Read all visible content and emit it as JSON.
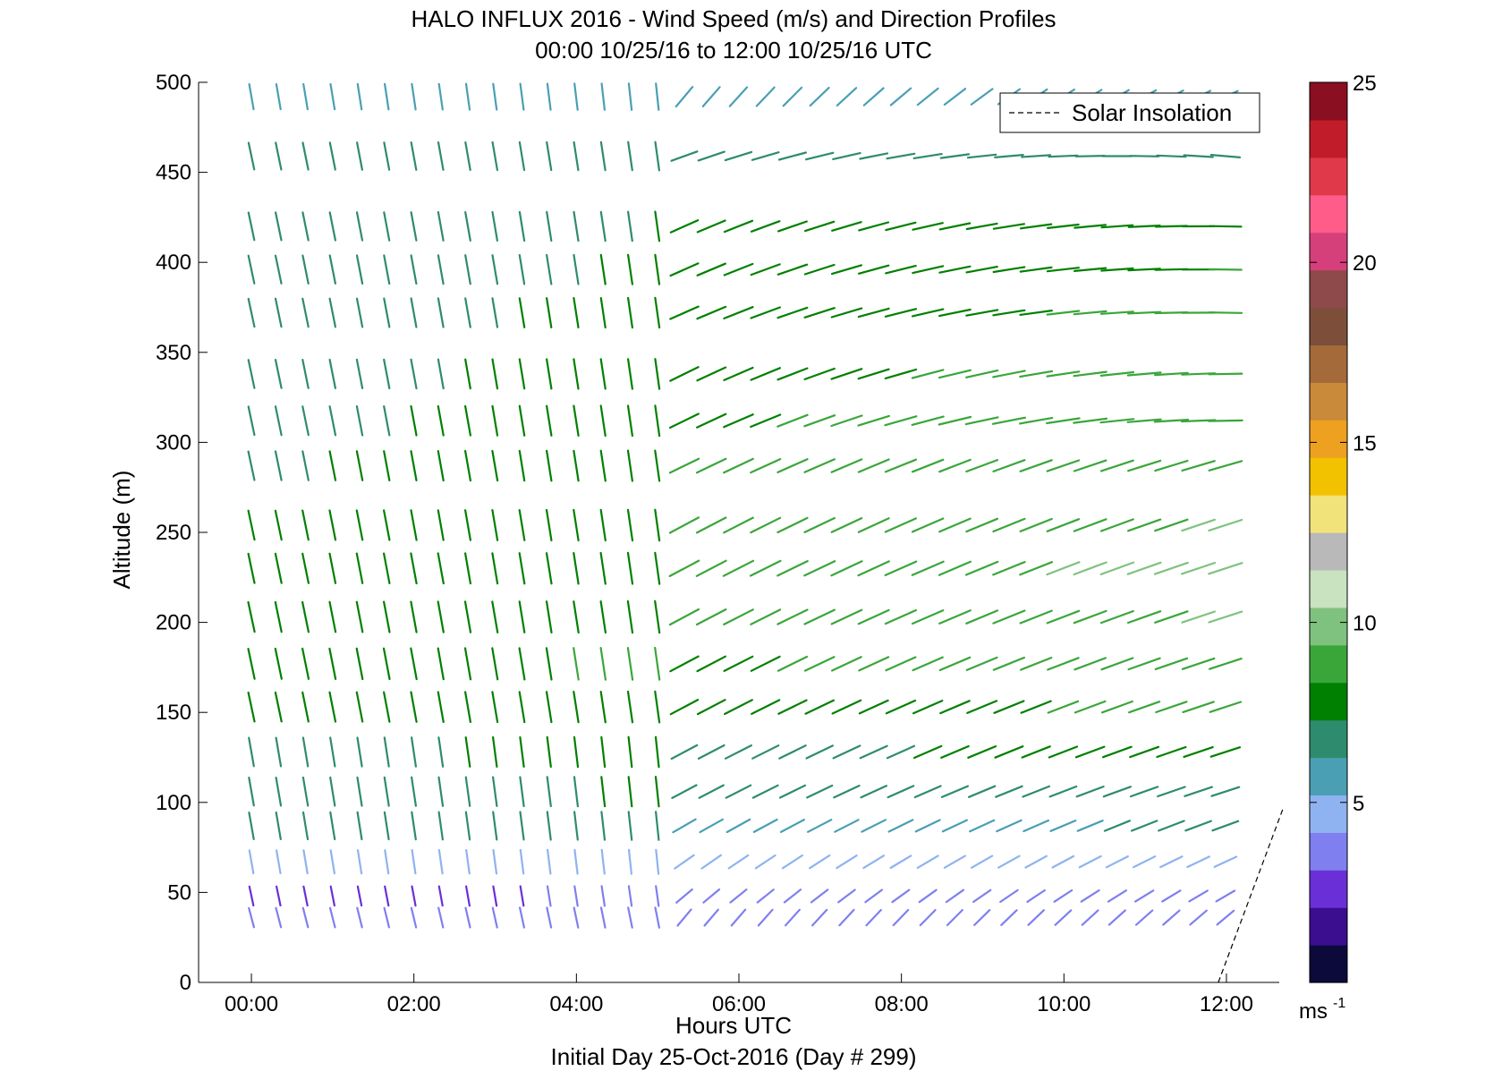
{
  "chart_data": {
    "type": "wind-barb-profile",
    "title": "HALO INFLUX 2016 - Wind Speed (m/s) and Direction Profiles",
    "subtitle": "00:00 10/25/16 to 12:00 10/25/16  UTC",
    "xlabel": "Hours UTC",
    "xlabel2": "Initial Day 25-Oct-2016 (Day # 299)",
    "ylabel": "Altitude (m)",
    "xlim": [
      -0.65,
      12.65
    ],
    "ylim": [
      0,
      500
    ],
    "x_ticks": [
      0,
      2,
      4,
      6,
      8,
      10,
      12
    ],
    "x_tick_labels": [
      "00:00",
      "02:00",
      "04:00",
      "06:00",
      "08:00",
      "10:00",
      "12:00"
    ],
    "y_ticks": [
      0,
      50,
      100,
      150,
      200,
      250,
      300,
      350,
      400,
      450,
      500
    ],
    "y_tick_labels": [
      "0",
      "50",
      "100",
      "150",
      "200",
      "250",
      "300",
      "350",
      "400",
      "450",
      "500"
    ],
    "colorbar": {
      "range": [
        0,
        25
      ],
      "ticks": [
        5,
        10,
        15,
        20,
        25
      ],
      "tick_labels": [
        "5",
        "10",
        "15",
        "20",
        "25"
      ],
      "unit_label": "ms",
      "unit_exponent": "-1",
      "colors": [
        "#0b0a3a",
        "#3b0d8f",
        "#6a2fd6",
        "#7f7ff0",
        "#8fb3f0",
        "#4a9fb4",
        "#2e8b6e",
        "#008000",
        "#3aa63a",
        "#7fc27f",
        "#c9e2c0",
        "#b9b9b9",
        "#f2e27a",
        "#f2c200",
        "#eea020",
        "#c98a3a",
        "#a46a3a",
        "#7d4f3a",
        "#8e4a4a",
        "#d6407a",
        "#ff5c8a",
        "#e03a4a",
        "#c01c2a",
        "#8a0f20"
      ]
    },
    "legend": {
      "entries": [
        "Solar Insolation"
      ],
      "position": "top-right"
    },
    "altitudes": [
      36,
      48,
      67,
      87,
      106,
      128,
      153,
      177,
      203,
      230,
      254,
      287,
      312,
      338,
      372,
      396,
      420,
      459,
      492
    ],
    "time_step_hours": 0.333,
    "gap_times": [
      5.0
    ],
    "solar_insolation": {
      "x": [
        11.9,
        12.7
      ],
      "y": [
        0,
        97
      ]
    },
    "profiles": [
      {
        "t_end": 5.0,
        "speed": [
          3.4,
          3.2,
          5.0,
          6.8,
          7.4,
          7.6,
          8.0,
          8.5,
          8.3,
          8.1,
          8.0,
          7.8,
          7.7,
          7.6,
          7.5,
          7.4,
          7.3,
          6.9,
          6.0
        ],
        "dir": [
          -15,
          -12,
          -10,
          -10,
          -10,
          -10,
          -12,
          -12,
          -12,
          -12,
          -12,
          -12,
          -12,
          -12,
          -12,
          -12,
          -12,
          -12,
          -10
        ]
      },
      {
        "t_start": 5.33,
        "speed": [
          3.6,
          3.4,
          4.6,
          5.8,
          6.4,
          7.0,
          7.8,
          8.2,
          8.6,
          8.8,
          8.6,
          8.4,
          8.2,
          8.0,
          7.8,
          7.6,
          7.4,
          6.4,
          5.6
        ],
        "dir": [
          40,
          50,
          55,
          60,
          62,
          62,
          62,
          62,
          62,
          62,
          62,
          64,
          64,
          64,
          66,
          66,
          66,
          70,
          40
        ]
      }
    ]
  }
}
